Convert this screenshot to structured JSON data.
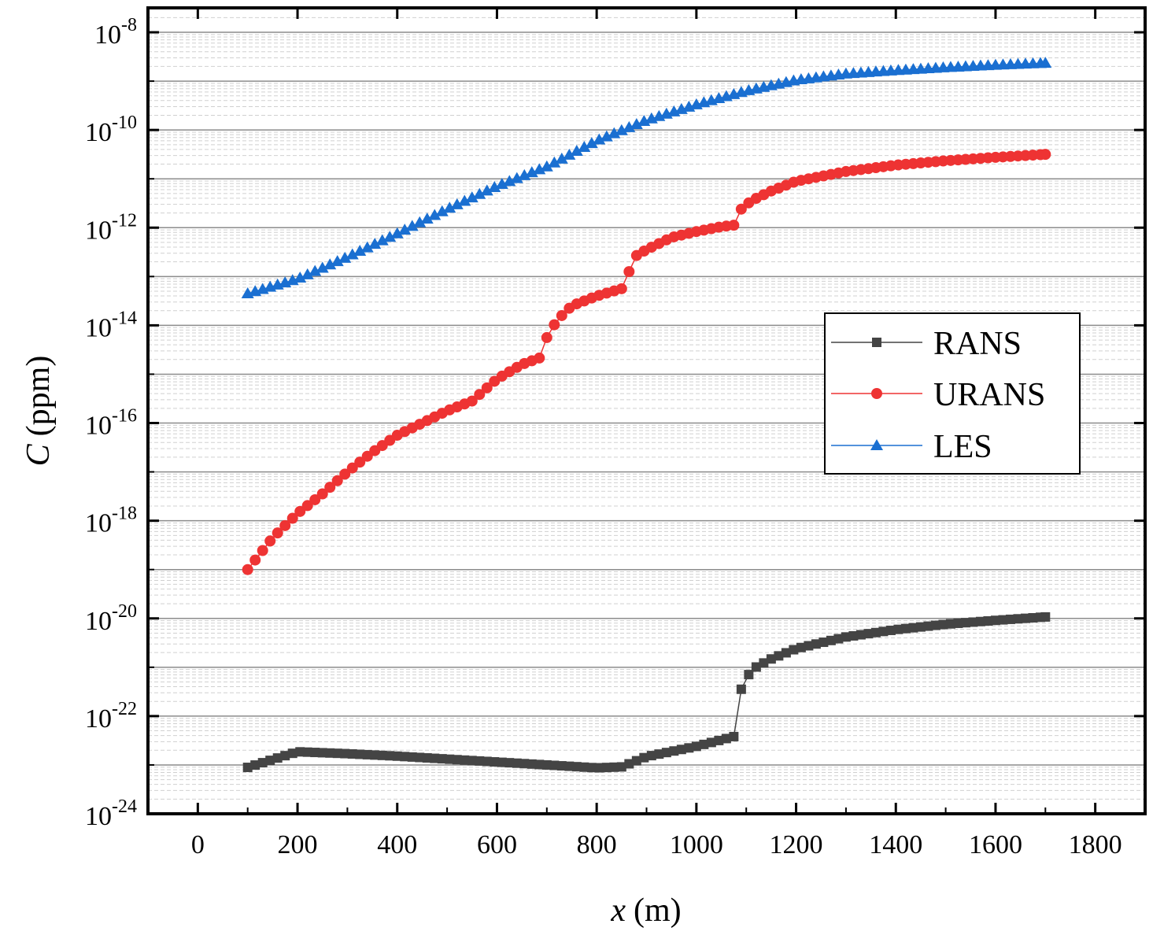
{
  "chart_data": {
    "type": "line",
    "title": "",
    "xlabel": {
      "symbol": "x",
      "unit": "(m)"
    },
    "ylabel": {
      "symbol": "C",
      "unit": "(ppm)"
    },
    "xlim": [
      -100,
      1900
    ],
    "ylim_log10": [
      -24,
      -7.5
    ],
    "yscale": "log",
    "grid": true,
    "x_ticks": [
      {
        "value": 0,
        "label": "0"
      },
      {
        "value": 200,
        "label": "200"
      },
      {
        "value": 400,
        "label": "400"
      },
      {
        "value": 600,
        "label": "600"
      },
      {
        "value": 800,
        "label": "800"
      },
      {
        "value": 1000,
        "label": "1000"
      },
      {
        "value": 1200,
        "label": "1200"
      },
      {
        "value": 1400,
        "label": "1400"
      },
      {
        "value": 1600,
        "label": "1600"
      },
      {
        "value": 1800,
        "label": "1800"
      }
    ],
    "y_ticks": [
      {
        "exp": -8,
        "base": "10",
        "sup": "-8"
      },
      {
        "exp": -10,
        "base": "10",
        "sup": "-10"
      },
      {
        "exp": -12,
        "base": "10",
        "sup": "-12"
      },
      {
        "exp": -14,
        "base": "10",
        "sup": "-14"
      },
      {
        "exp": -16,
        "base": "10",
        "sup": "-16"
      },
      {
        "exp": -18,
        "base": "10",
        "sup": "-18"
      },
      {
        "exp": -20,
        "base": "10",
        "sup": "-20"
      },
      {
        "exp": -22,
        "base": "10",
        "sup": "-22"
      },
      {
        "exp": -24,
        "base": "10",
        "sup": "-24"
      }
    ],
    "legend": {
      "position": "right-middle"
    },
    "series": [
      {
        "name": "RANS",
        "color": "#444444",
        "marker": "square",
        "x": [
          100,
          200,
          300,
          400,
          500,
          600,
          700,
          800,
          850,
          900,
          1000,
          1075,
          1090,
          1110,
          1150,
          1200,
          1300,
          1400,
          1500,
          1600,
          1700
        ],
        "log10_c": [
          -23.05,
          -22.73,
          -22.77,
          -22.82,
          -22.88,
          -22.94,
          -23.0,
          -23.06,
          -23.04,
          -22.83,
          -22.62,
          -22.42,
          -21.45,
          -21.05,
          -20.83,
          -20.62,
          -20.38,
          -20.23,
          -20.12,
          -20.04,
          -19.97
        ]
      },
      {
        "name": "URANS",
        "color": "#ee3333",
        "marker": "circle",
        "x": [
          100,
          150,
          200,
          250,
          300,
          350,
          400,
          450,
          500,
          550,
          600,
          650,
          690,
          700,
          720,
          750,
          800,
          850,
          865,
          875,
          900,
          950,
          1000,
          1050,
          1075,
          1090,
          1110,
          1150,
          1200,
          1300,
          1400,
          1500,
          1600,
          1700
        ],
        "log10_c": [
          -19.0,
          -18.35,
          -17.85,
          -17.45,
          -17.0,
          -16.6,
          -16.25,
          -16.0,
          -15.75,
          -15.55,
          -15.1,
          -14.8,
          -14.65,
          -14.25,
          -13.9,
          -13.6,
          -13.4,
          -13.25,
          -12.9,
          -12.6,
          -12.45,
          -12.2,
          -12.08,
          -11.98,
          -11.95,
          -11.62,
          -11.45,
          -11.25,
          -11.05,
          -10.85,
          -10.72,
          -10.63,
          -10.56,
          -10.5
        ]
      },
      {
        "name": "LES",
        "color": "#1a6fd1",
        "marker": "triangle",
        "x": [
          100,
          200,
          300,
          400,
          500,
          600,
          700,
          800,
          900,
          1000,
          1100,
          1200,
          1300,
          1400,
          1500,
          1600,
          1700
        ],
        "log10_c": [
          -13.35,
          -13.05,
          -12.6,
          -12.12,
          -11.62,
          -11.15,
          -10.75,
          -10.22,
          -9.8,
          -9.48,
          -9.2,
          -8.98,
          -8.85,
          -8.78,
          -8.72,
          -8.67,
          -8.63
        ]
      }
    ]
  }
}
